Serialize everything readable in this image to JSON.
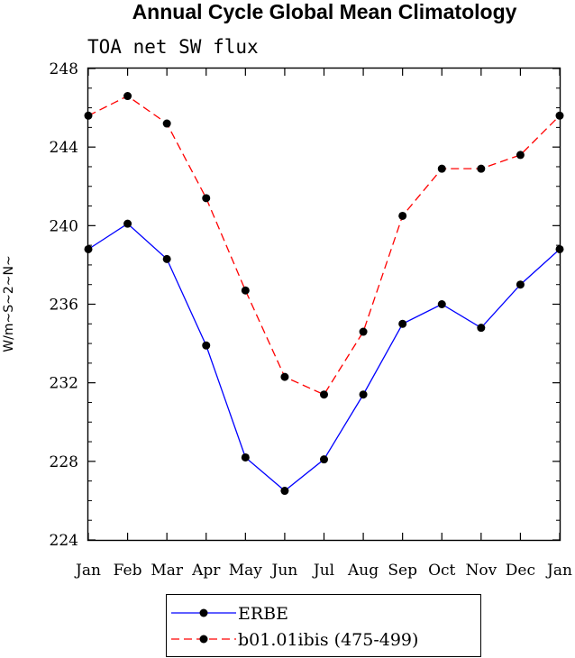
{
  "chart_data": {
    "type": "line",
    "title": "Annual Cycle Global Mean Climatology",
    "subtitle": "TOA net SW flux",
    "ylabel": "W/m~S~2~N~",
    "xlabel": "",
    "categories": [
      "Jan",
      "Feb",
      "Mar",
      "Apr",
      "May",
      "Jun",
      "Jul",
      "Aug",
      "Sep",
      "Oct",
      "Nov",
      "Dec",
      "Jan"
    ],
    "ylim": [
      224,
      248
    ],
    "yticks": [
      224,
      228,
      232,
      236,
      240,
      244,
      248
    ],
    "grid": false,
    "legend_position": "bottom",
    "series": [
      {
        "name": "ERBE",
        "color": "#0000ff",
        "dash": "solid",
        "marker": "filled-circle",
        "values": [
          238.8,
          240.1,
          238.3,
          233.9,
          228.2,
          226.5,
          228.1,
          231.4,
          235.0,
          236.0,
          234.8,
          237.0,
          238.8
        ]
      },
      {
        "name": "b01.01ibis (475-499)",
        "color": "#ff0000",
        "dash": "dashed",
        "marker": "filled-circle",
        "values": [
          245.6,
          246.6,
          245.2,
          241.4,
          236.7,
          232.3,
          231.4,
          234.6,
          240.5,
          242.9,
          242.9,
          243.6,
          245.6
        ]
      }
    ]
  }
}
